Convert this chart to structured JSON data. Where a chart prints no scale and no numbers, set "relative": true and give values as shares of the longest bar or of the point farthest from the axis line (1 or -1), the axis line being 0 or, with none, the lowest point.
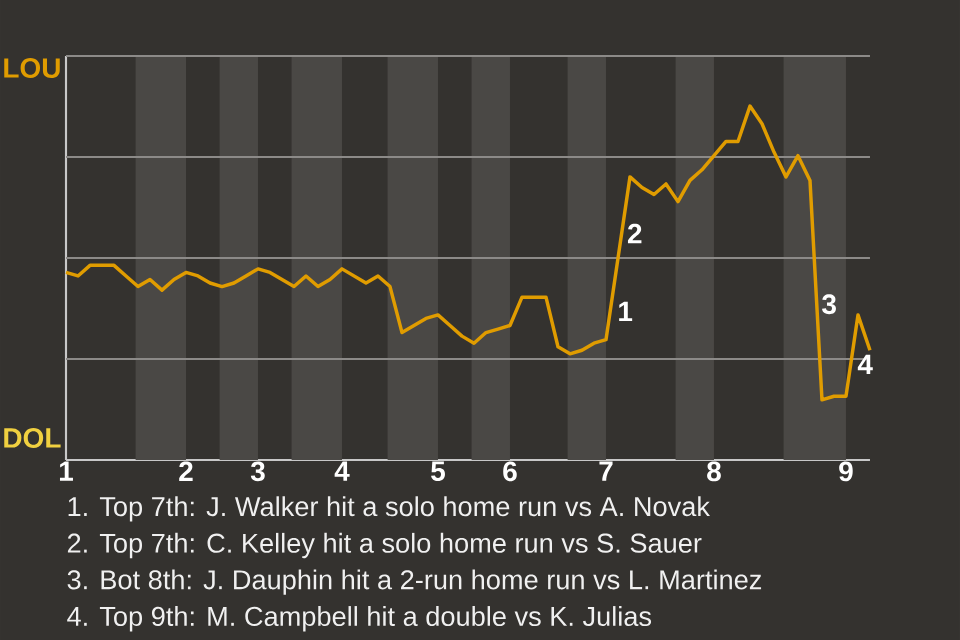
{
  "chart_data": {
    "type": "line",
    "relative": true,
    "categories": [
      "1",
      null,
      null,
      null,
      null,
      null,
      null,
      null,
      null,
      null,
      "2",
      null,
      null,
      null,
      null,
      null,
      "3",
      null,
      null,
      null,
      null,
      null,
      null,
      "4",
      null,
      null,
      null,
      null,
      null,
      null,
      null,
      "5",
      null,
      null,
      null,
      null,
      null,
      "6",
      null,
      null,
      null,
      null,
      null,
      null,
      null,
      "7",
      null,
      null,
      null,
      null,
      null,
      null,
      null,
      null,
      "8",
      null,
      null,
      null,
      null,
      null,
      null,
      null,
      null,
      null,
      null,
      "9",
      null,
      null
    ],
    "series": [
      {
        "color": "#e09c00",
        "values": [
          0.53,
          0.52,
          0.55,
          0.55,
          0.55,
          0.52,
          0.49,
          0.51,
          0.48,
          0.51,
          0.53,
          0.52,
          0.5,
          0.49,
          0.5,
          0.52,
          0.54,
          0.53,
          0.51,
          0.49,
          0.52,
          0.49,
          0.51,
          0.54,
          0.52,
          0.5,
          0.52,
          0.49,
          0.36,
          0.38,
          0.4,
          0.41,
          0.38,
          0.35,
          0.33,
          0.36,
          0.37,
          0.38,
          0.46,
          0.46,
          0.46,
          0.32,
          0.3,
          0.31,
          0.33,
          0.34,
          0.57,
          0.8,
          0.77,
          0.75,
          0.78,
          0.73,
          0.79,
          0.82,
          0.86,
          0.9,
          0.9,
          1,
          0.95,
          0.87,
          0.8,
          0.86,
          0.79,
          0.17,
          0.18,
          0.18,
          0.41,
          0.31
        ]
      }
    ],
    "grid": "y",
    "marker": "none",
    "line_style": "solid",
    "annotations": [
      "LOU",
      "DOL",
      "1",
      "2",
      "3",
      "4",
      "1. Top 7th: J. Walker hit a solo home run vs A. Novak",
      "2. Top 7th: C. Kelley hit a solo home run vs S. Sauer",
      "3. Bot 8th: J. Dauphin hit a 2-run home run vs L. Martinez",
      "4. Top 9th: M. Campbell hit a double vs K. Julias"
    ]
  }
}
